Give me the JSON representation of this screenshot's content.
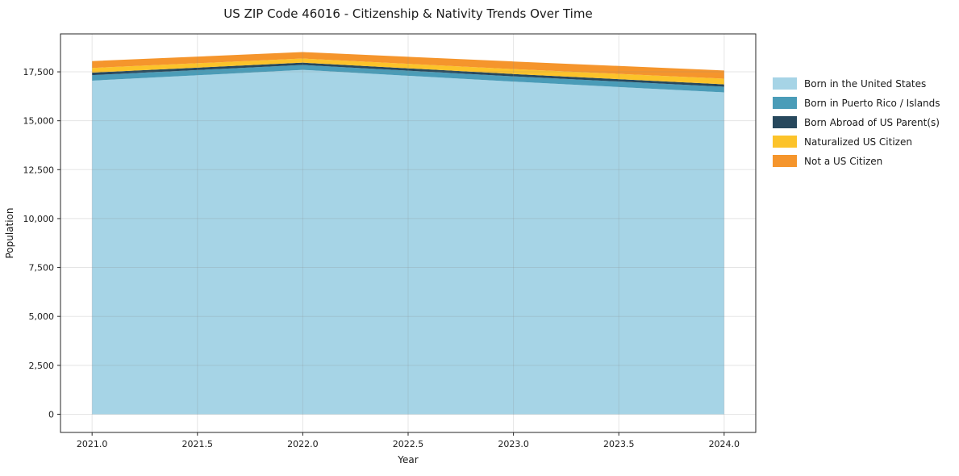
{
  "title": "US ZIP Code 46016 - Citizenship & Nativity Trends Over Time",
  "chart_data": {
    "type": "area",
    "stacked": true,
    "title": "US ZIP Code 46016 - Citizenship & Nativity Trends Over Time",
    "xlabel": "Year",
    "ylabel": "Population",
    "x": [
      2021,
      2022,
      2023,
      2024
    ],
    "series": [
      {
        "name": "Born in the United States",
        "color": "#a6d4e6",
        "values": [
          17050,
          17600,
          17000,
          16450
        ]
      },
      {
        "name": "Born in Puerto Rico / Islands",
        "color": "#4a9cb8",
        "values": [
          280,
          250,
          270,
          290
        ]
      },
      {
        "name": "Born Abroad of US Parent(s)",
        "color": "#27485d",
        "values": [
          130,
          120,
          120,
          120
        ]
      },
      {
        "name": "Naturalized US Citizen",
        "color": "#fcc32a",
        "values": [
          240,
          210,
          250,
          290
        ]
      },
      {
        "name": "Not a US Citizen",
        "color": "#f5952c",
        "values": [
          350,
          330,
          390,
          420
        ]
      }
    ],
    "totals": [
      18050,
      18510,
      18030,
      17570
    ],
    "xticks": [
      2021.0,
      2021.5,
      2022.0,
      2022.5,
      2023.0,
      2023.5,
      2024.0
    ],
    "xticklabels": [
      "2021.0",
      "2021.5",
      "2022.0",
      "2022.5",
      "2023.0",
      "2023.5",
      "2024.0"
    ],
    "yticks": [
      0,
      2500,
      5000,
      7500,
      10000,
      12500,
      15000,
      17500
    ],
    "yticklabels": [
      "0",
      "2,500",
      "5,000",
      "7,500",
      "10,000",
      "12,500",
      "15,000",
      "17,500"
    ],
    "xlim": [
      2020.85,
      2024.15
    ],
    "ylim": [
      -930,
      19440
    ],
    "grid": true,
    "legend_position": "right",
    "axis_color": "#262626",
    "grid_color": "#888888",
    "grid_opacity": 0.22
  }
}
